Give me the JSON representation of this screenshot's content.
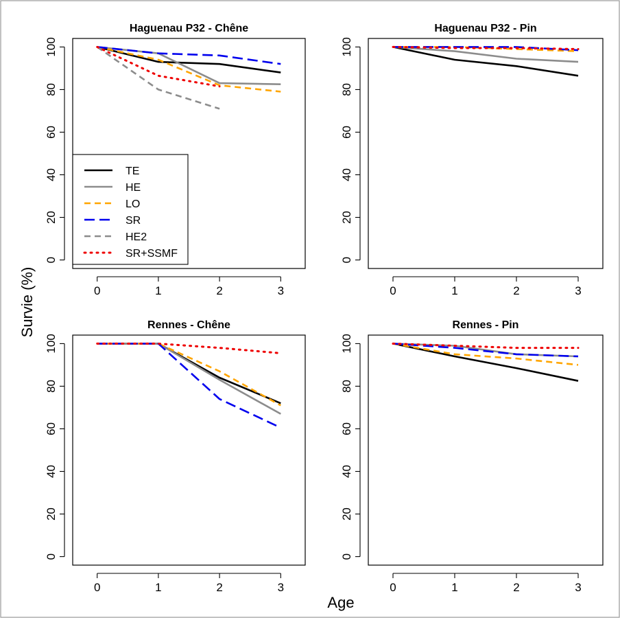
{
  "chart_data": {
    "type": "line",
    "xlabel": "Age",
    "ylabel": "Survie (%)",
    "xticks": [
      0,
      1,
      2,
      3
    ],
    "yticks": [
      0,
      20,
      40,
      60,
      80,
      100
    ],
    "xlim": [
      -0.4,
      3.4
    ],
    "ylim": [
      -4,
      104
    ],
    "legend": {
      "placement": "left, inside top-left panel",
      "entries": [
        {
          "name": "TE",
          "color": "#000000",
          "dash": "solid"
        },
        {
          "name": "HE",
          "color": "#8c8c8c",
          "dash": "solid"
        },
        {
          "name": "LO",
          "color": "#ffa500",
          "dash": "dashed"
        },
        {
          "name": "SR",
          "color": "#0000ee",
          "dash": "longdash"
        },
        {
          "name": "HE2",
          "color": "#8c8c8c",
          "dash": "dashed"
        },
        {
          "name": "SR+SSMF",
          "color": "#ee0000",
          "dash": "dotted"
        }
      ]
    },
    "panels": [
      {
        "title": "Haguenau P32 - Chêne",
        "series": [
          {
            "name": "TE",
            "x": [
              0,
              1,
              2,
              3
            ],
            "y": [
              100,
              93,
              92,
              88
            ]
          },
          {
            "name": "HE",
            "x": [
              0,
              1,
              2,
              3
            ],
            "y": [
              100,
              97,
              83,
              82.5
            ]
          },
          {
            "name": "LO",
            "x": [
              0,
              1,
              2,
              3
            ],
            "y": [
              100,
              94,
              82,
              79
            ]
          },
          {
            "name": "SR",
            "x": [
              0,
              1,
              2,
              3
            ],
            "y": [
              100,
              97,
              96,
              92
            ]
          },
          {
            "name": "HE2",
            "x": [
              0,
              1,
              2
            ],
            "y": [
              100,
              80,
              71
            ]
          },
          {
            "name": "SR+SSMF",
            "x": [
              0,
              1,
              2
            ],
            "y": [
              100,
              86.5,
              81.5
            ]
          }
        ]
      },
      {
        "title": "Haguenau P32 - Pin",
        "series": [
          {
            "name": "TE",
            "x": [
              0,
              1,
              2,
              3
            ],
            "y": [
              100,
              94,
              91,
              86.5
            ]
          },
          {
            "name": "HE",
            "x": [
              0,
              1,
              2,
              3
            ],
            "y": [
              100,
              98,
              94.5,
              93
            ]
          },
          {
            "name": "LO",
            "x": [
              0,
              1,
              2,
              3
            ],
            "y": [
              100,
              100,
              99,
              98
            ]
          },
          {
            "name": "SR",
            "x": [
              0,
              1,
              2,
              3
            ],
            "y": [
              100,
              100,
              100,
              98.5
            ]
          },
          {
            "name": "SR+SSMF",
            "x": [
              0,
              1,
              2,
              3
            ],
            "y": [
              100,
              99.5,
              99.5,
              99
            ]
          }
        ]
      },
      {
        "title": "Rennes - Chêne",
        "series": [
          {
            "name": "TE",
            "x": [
              0,
              1,
              2,
              3
            ],
            "y": [
              100,
              100,
              84,
              72
            ]
          },
          {
            "name": "HE",
            "x": [
              0,
              1,
              2,
              3
            ],
            "y": [
              100,
              100,
              83,
              67
            ]
          },
          {
            "name": "LO",
            "x": [
              0,
              1,
              2,
              3
            ],
            "y": [
              100,
              100,
              87,
              71
            ]
          },
          {
            "name": "SR",
            "x": [
              0,
              1,
              2,
              3
            ],
            "y": [
              100,
              100,
              74,
              60.5
            ]
          },
          {
            "name": "SR+SSMF",
            "x": [
              0,
              1,
              2,
              3
            ],
            "y": [
              100,
              100,
              98,
              95.5
            ]
          }
        ]
      },
      {
        "title": "Rennes - Pin",
        "series": [
          {
            "name": "TE",
            "x": [
              0,
              1,
              2,
              3
            ],
            "y": [
              100,
              94,
              88.5,
              82.5
            ]
          },
          {
            "name": "HE",
            "x": [
              0,
              1,
              2,
              3
            ],
            "y": [
              100,
              99,
              95,
              94
            ]
          },
          {
            "name": "LO",
            "x": [
              0,
              1,
              2,
              3
            ],
            "y": [
              100,
              95,
              93,
              90
            ]
          },
          {
            "name": "SR",
            "x": [
              0,
              1,
              2,
              3
            ],
            "y": [
              100,
              98,
              95,
              94
            ]
          },
          {
            "name": "SR+SSMF",
            "x": [
              0,
              1,
              2,
              3
            ],
            "y": [
              100,
              99,
              98,
              98
            ]
          }
        ]
      }
    ]
  }
}
